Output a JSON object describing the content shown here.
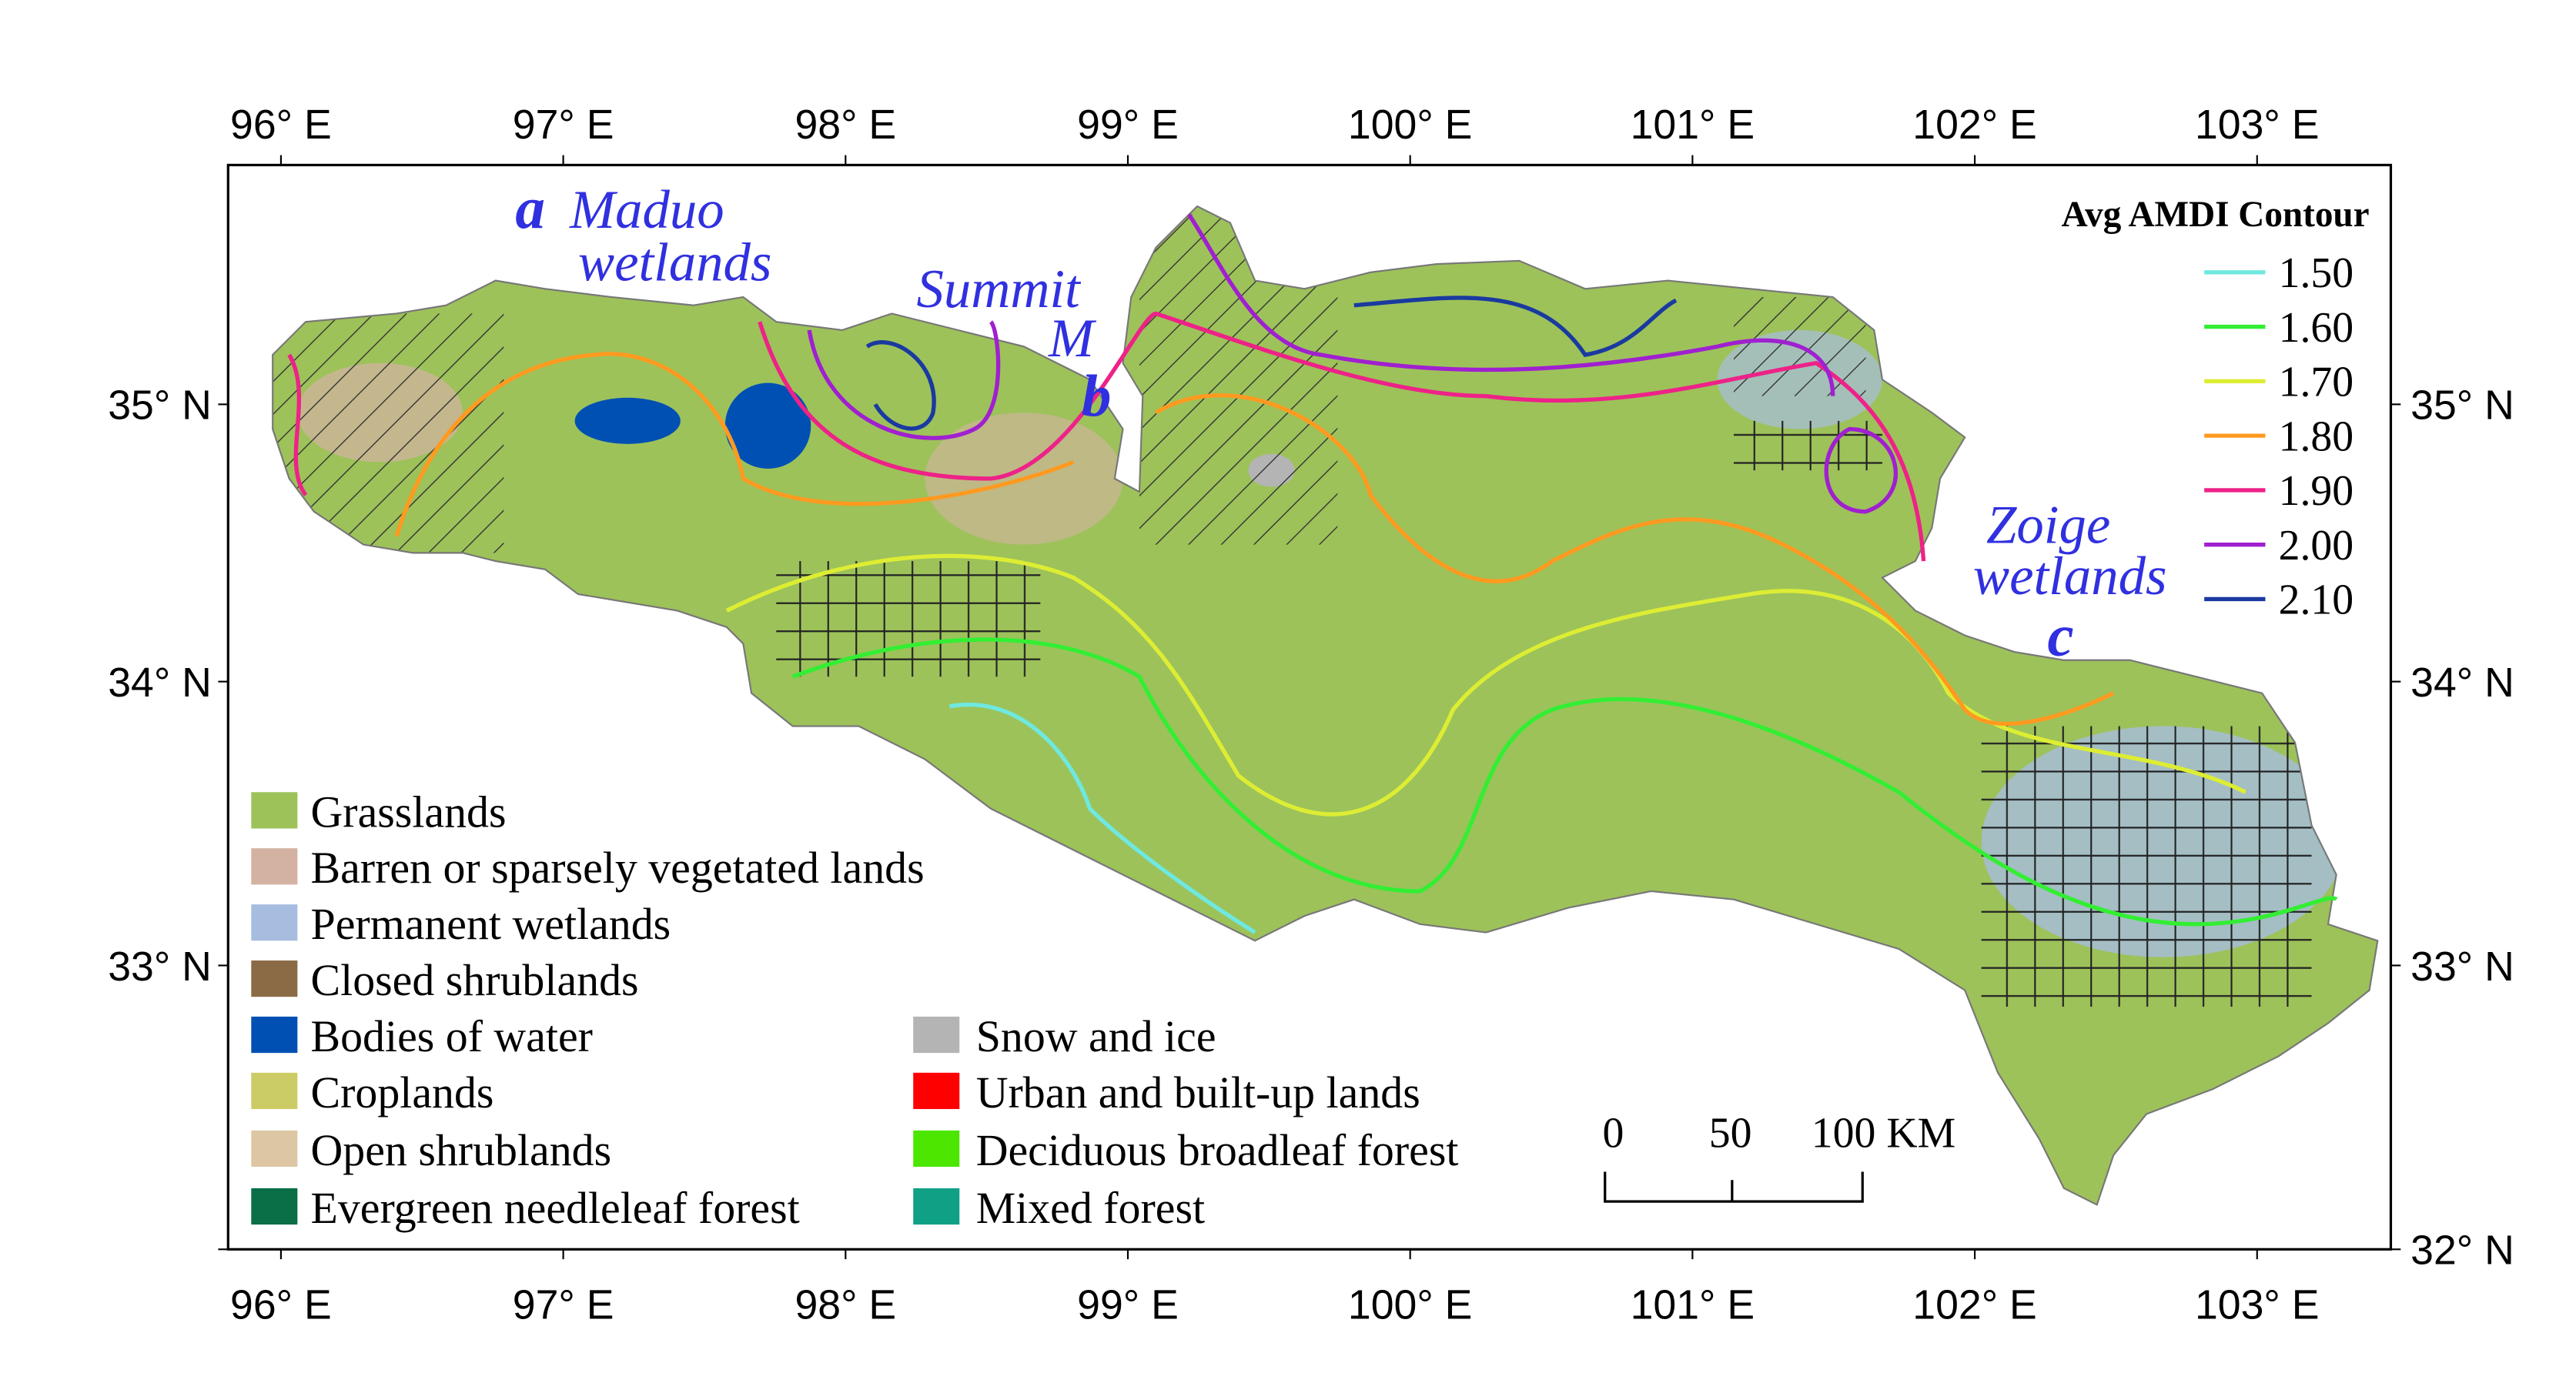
{
  "map": {
    "lon_labels": [
      "96° E",
      "97° E",
      "98° E",
      "99° E",
      "100° E",
      "101° E",
      "102° E",
      "103° E"
    ],
    "lat_labels": [
      "35° N",
      "34° N",
      "33° N",
      "32° N"
    ],
    "annotations": [
      {
        "letter": "a",
        "lines": [
          "Maduo",
          "wetlands"
        ]
      },
      {
        "letter": "b",
        "lines": [
          "Summit",
          "M"
        ]
      },
      {
        "letter": "c",
        "lines": [
          "Zoige",
          "wetlands"
        ]
      }
    ],
    "land_cover_legend": [
      {
        "label": "Grasslands",
        "color": "#9dc25a"
      },
      {
        "label": "Barren or sparsely vegetated lands",
        "color": "#d4b2a2"
      },
      {
        "label": "Permanent wetlands",
        "color": "#a6bddf"
      },
      {
        "label": "Closed shrublands",
        "color": "#8a6b45"
      },
      {
        "label": "Bodies of water",
        "color": "#0050b4"
      },
      {
        "label": "Croplands",
        "color": "#cccc66"
      },
      {
        "label": "Open shrublands",
        "color": "#dcc6a4"
      },
      {
        "label": "Evergreen needleleaf forest",
        "color": "#0a6e46"
      },
      {
        "label": "Snow and ice",
        "color": "#b4b4b4"
      },
      {
        "label": "Urban and built-up lands",
        "color": "#ff0000"
      },
      {
        "label": "Deciduous broadleaf forest",
        "color": "#4ce600"
      },
      {
        "label": "Mixed forest",
        "color": "#10a086"
      }
    ],
    "contour_legend": {
      "title": "Avg AMDI Contour",
      "items": [
        {
          "label": "1.50",
          "color": "#6fe8e0"
        },
        {
          "label": "1.60",
          "color": "#33ee33"
        },
        {
          "label": "1.70",
          "color": "#dded33"
        },
        {
          "label": "1.80",
          "color": "#ff9a20"
        },
        {
          "label": "1.90",
          "color": "#ee2288"
        },
        {
          "label": "2.00",
          "color": "#a020d0"
        },
        {
          "label": "2.10",
          "color": "#1a3aa0"
        }
      ]
    },
    "scale_bar": {
      "labels": [
        "0",
        "50",
        "100 KM"
      ]
    }
  }
}
